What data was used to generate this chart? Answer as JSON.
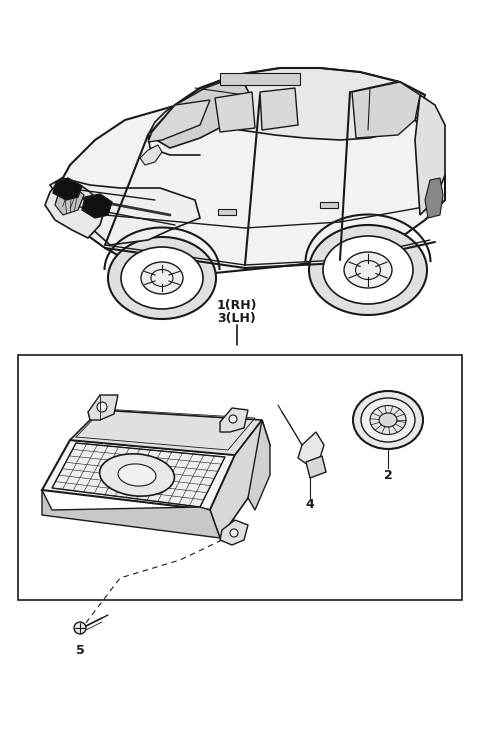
{
  "bg_color": "#ffffff",
  "line_color": "#1a1a1a",
  "fig_width": 4.8,
  "fig_height": 7.42,
  "dpi": 100,
  "label_1": "1(RH)",
  "label_3": "3(LH)",
  "label_2": "2",
  "label_4": "4",
  "label_5": "5",
  "car_gray": "#e8e8e8",
  "dark_fill": "#111111",
  "mid_gray": "#999999",
  "light_gray": "#dddddd"
}
